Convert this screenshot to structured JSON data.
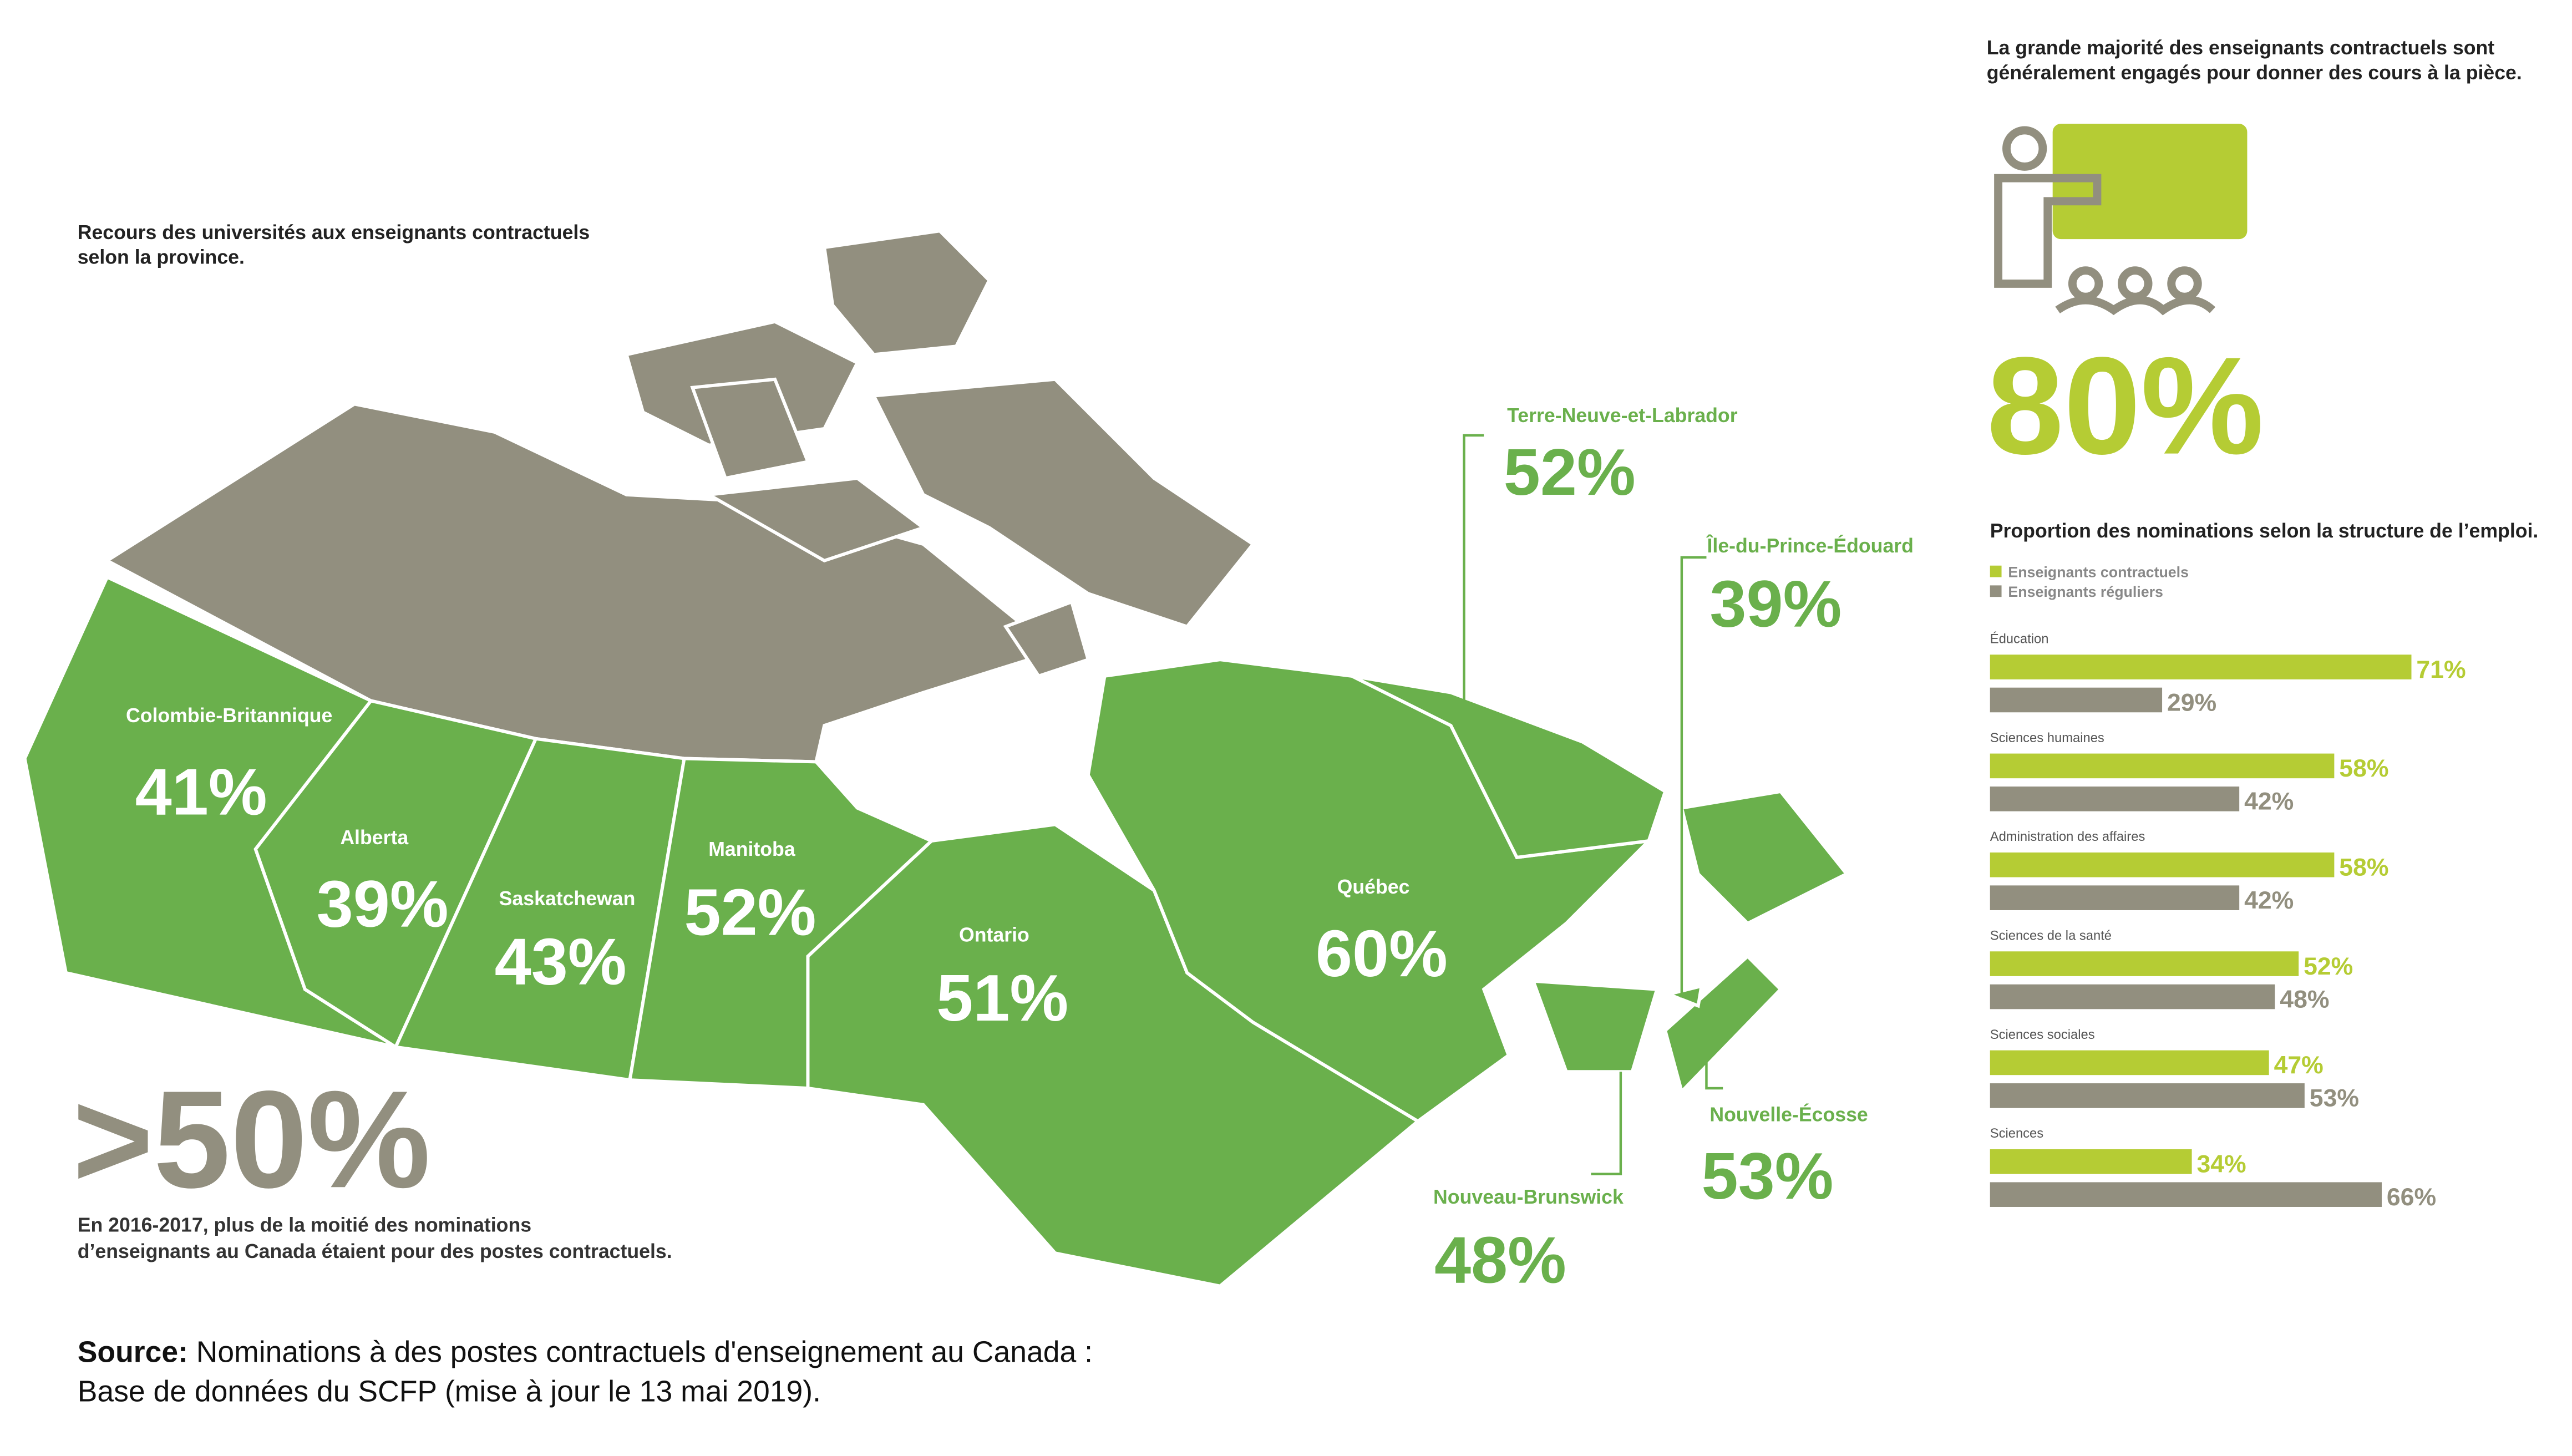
{
  "map_title": [
    "Recours des universités aux enseignants contractuels",
    "selon la province."
  ],
  "provinces": [
    {
      "name": "Colombie-Britannique",
      "value": 41,
      "value_label": "41%"
    },
    {
      "name": "Alberta",
      "value": 39,
      "value_label": "39%"
    },
    {
      "name": "Saskatchewan",
      "value": 43,
      "value_label": "43%"
    },
    {
      "name": "Manitoba",
      "value": 52,
      "value_label": "52%"
    },
    {
      "name": "Ontario",
      "value": 51,
      "value_label": "51%"
    },
    {
      "name": "Québec",
      "value": 60,
      "value_label": "60%"
    },
    {
      "name": "Terre-Neuve-et-Labrador",
      "value": 52,
      "value_label": "52%"
    },
    {
      "name": "Île-du-Prince-Édouard",
      "value": 39,
      "value_label": "39%"
    },
    {
      "name": "Nouveau-Brunswick",
      "value": 48,
      "value_label": "48%"
    },
    {
      "name": "Nouvelle-Écosse",
      "value": 53,
      "value_label": "53%"
    }
  ],
  "headline": {
    "value": ">50%",
    "text": [
      "En 2016-2017, plus de la moitié des nominations",
      "d’enseignants au Canada étaient pour des postes contractuels."
    ]
  },
  "source": {
    "label": "Source:",
    "lines": [
      " Nominations à des postes contractuels d'enseignement au Canada :",
      "Base de données du SCFP (mise à jour le 13 mai 2019)."
    ]
  },
  "right_panel": {
    "title": [
      "La grande majorité des enseignants contractuels sont",
      "généralement engagés pour donner des cours à la pièce."
    ],
    "big_value": "80%"
  },
  "chart_data": {
    "type": "bar",
    "orientation": "horizontal",
    "title": "Proportion des nominations selon la structure de l’emploi.",
    "categories": [
      "Éducation",
      "Sciences humaines",
      "Administration des affaires",
      "Sciences de la santé",
      "Sciences sociales",
      "Sciences"
    ],
    "series": [
      {
        "name": "Enseignants contractuels",
        "color": "#b5cc34",
        "values": [
          71,
          58,
          58,
          52,
          47,
          34
        ],
        "value_labels": [
          "71%",
          "58%",
          "58%",
          "52%",
          "47%",
          "34%"
        ]
      },
      {
        "name": "Enseignants réguliers",
        "color": "#928f7f",
        "values": [
          29,
          42,
          42,
          48,
          53,
          66
        ],
        "value_labels": [
          "29%",
          "42%",
          "42%",
          "48%",
          "53%",
          "66%"
        ]
      }
    ],
    "xlim": [
      0,
      100
    ]
  }
}
